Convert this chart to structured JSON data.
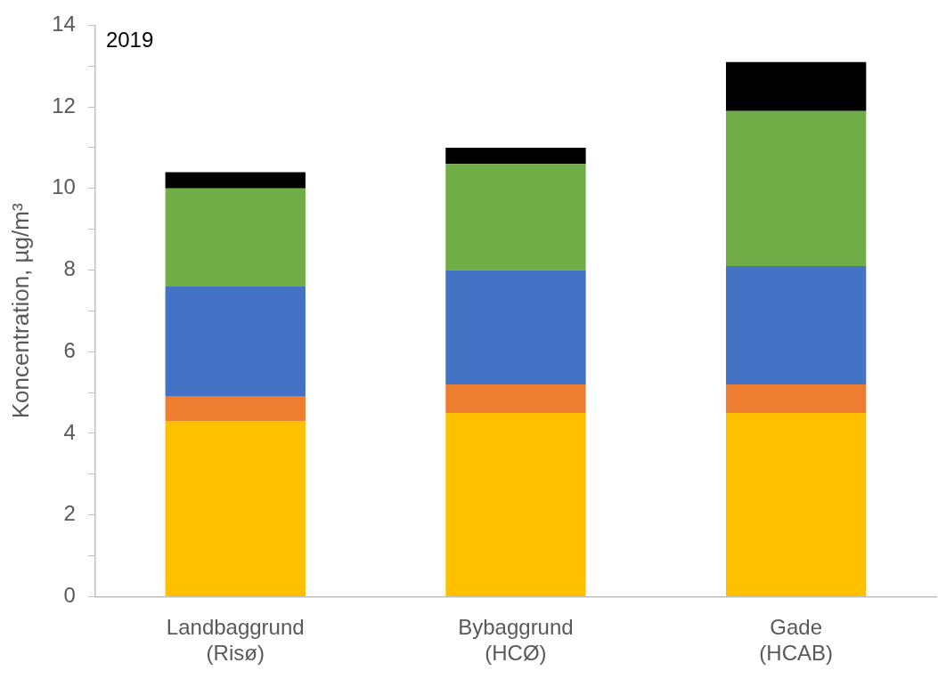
{
  "chart_data": {
    "type": "bar",
    "stacked": true,
    "ylabel": "Koncentration, µg/m³",
    "annotations": [
      "2019"
    ],
    "categories": [
      "Landbaggrund\n(Risø)",
      "Bybaggrund\n(HCØ)",
      "Gade\n(HCAB)"
    ],
    "series": [
      {
        "color": "#ffc000",
        "values": [
          4.3,
          4.5,
          4.5
        ]
      },
      {
        "color": "#ed7d31",
        "values": [
          0.6,
          0.7,
          0.7
        ]
      },
      {
        "color": "#4472c4",
        "values": [
          2.7,
          2.8,
          2.9
        ]
      },
      {
        "color": "#70ad47",
        "values": [
          2.4,
          2.6,
          3.8
        ]
      },
      {
        "color": "#000000",
        "values": [
          0.4,
          0.4,
          1.2
        ]
      }
    ],
    "ylim": [
      0,
      14
    ],
    "yticks": [
      0,
      {
        "value": 1,
        "label": null
      },
      2,
      {
        "value": 3,
        "label": null
      },
      4,
      {
        "value": 5,
        "label": null
      },
      6,
      {
        "value": 7,
        "label": null
      },
      8,
      {
        "value": 9,
        "label": null
      },
      10,
      {
        "value": 11,
        "label": null
      },
      12,
      {
        "value": 13,
        "label": null
      },
      14
    ],
    "grid": false,
    "legend": false
  }
}
